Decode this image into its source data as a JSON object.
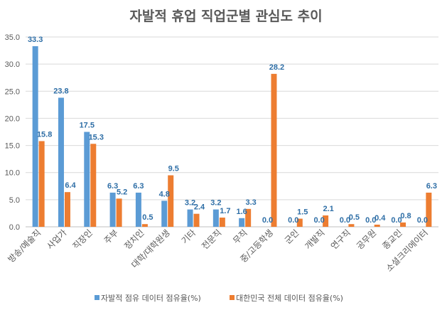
{
  "chart_data": {
    "type": "bar",
    "title": "자발적 휴업 직업군별 관심도 추이",
    "xlabel": "",
    "ylabel": "",
    "ylim": [
      0,
      35
    ],
    "ytick_step": 5,
    "yticks": [
      "0.0",
      "5.0",
      "10.0",
      "15.0",
      "20.0",
      "25.0",
      "30.0",
      "35.0"
    ],
    "grid": true,
    "legend_position": "bottom",
    "categories": [
      "방송/예술직",
      "사업가",
      "직장인",
      "주부",
      "정치인",
      "대학/대학원생",
      "기타",
      "전문직",
      "무직",
      "중/고등학생",
      "군인",
      "개발직",
      "연구직",
      "공무원",
      "종교인",
      "소셜크리에이터"
    ],
    "series": [
      {
        "name": "자발적 점유 데이터 점유율(%)",
        "color": "#5B9BD5",
        "values": [
          33.3,
          23.8,
          17.5,
          6.3,
          6.3,
          4.8,
          3.2,
          3.2,
          1.6,
          0.0,
          0.0,
          0.0,
          0.0,
          0.0,
          0.0,
          0.0
        ]
      },
      {
        "name": "대한민국 전체 데이터 점유율(%)",
        "color": "#ED7D31",
        "values": [
          15.8,
          6.4,
          15.3,
          5.2,
          0.5,
          9.5,
          2.4,
          1.7,
          3.3,
          28.2,
          1.5,
          2.1,
          0.5,
          0.4,
          0.8,
          6.3
        ]
      }
    ],
    "data_label_color": "#2E6EA6"
  }
}
